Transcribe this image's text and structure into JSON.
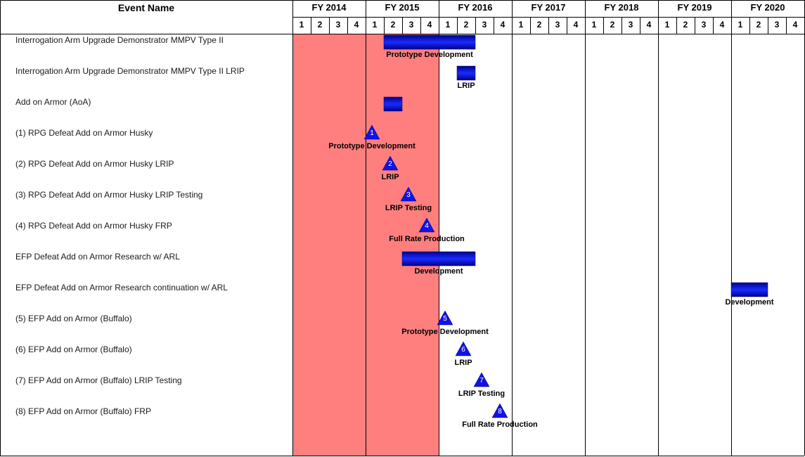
{
  "header": {
    "event_name": "Event Name"
  },
  "chart_data": {
    "type": "gantt",
    "fiscal_years": [
      "FY 2014",
      "FY 2015",
      "FY 2016",
      "FY 2017",
      "FY 2018",
      "FY 2019",
      "FY 2020"
    ],
    "quarter_labels": [
      "1",
      "2",
      "3",
      "4"
    ],
    "highlight": {
      "start": [
        2014,
        1
      ],
      "end": [
        2015,
        4
      ],
      "color": "#ff7f7f"
    },
    "colors": {
      "bar_dark": "#00008b",
      "bar_light": "#1a2bff",
      "marker": "#1212e6",
      "grid": "#000000"
    },
    "rows": [
      {
        "label": "Interrogation Arm Upgrade Demonstrator MMPV  Type II",
        "items": [
          {
            "kind": "bar",
            "start": [
              2015,
              2
            ],
            "end": [
              2016,
              2
            ],
            "text": "Prototype Development"
          }
        ]
      },
      {
        "label": "Interrogation Arm Upgrade Demonstrator MMPV Type II  LRIP",
        "items": [
          {
            "kind": "bar",
            "start": [
              2016,
              2
            ],
            "end": [
              2016,
              2
            ],
            "text": "LRIP"
          }
        ]
      },
      {
        "label": "Add on Armor (AoA)",
        "items": [
          {
            "kind": "bar",
            "start": [
              2015,
              2
            ],
            "end": [
              2015,
              2
            ],
            "text": ""
          }
        ]
      },
      {
        "label": "(1) RPG Defeat Add on Armor  Husky",
        "items": [
          {
            "kind": "milestone",
            "at": [
              2015,
              1
            ],
            "number": "1",
            "text": "Prototype Development"
          }
        ]
      },
      {
        "label": "(2) RPG Defeat Add on Armor  Husky  LRIP",
        "items": [
          {
            "kind": "milestone",
            "at": [
              2015,
              2
            ],
            "number": "2",
            "text": "LRIP"
          }
        ]
      },
      {
        "label": "(3) RPG Defeat Add on Armor Husky LRIP Testing",
        "items": [
          {
            "kind": "milestone",
            "at": [
              2015,
              3
            ],
            "number": "3",
            "text": "LRIP Testing"
          }
        ]
      },
      {
        "label": "(4) RPG Defeat Add on Armor Husky FRP",
        "items": [
          {
            "kind": "milestone",
            "at": [
              2015,
              4
            ],
            "number": "4",
            "text": "Full Rate Production"
          }
        ]
      },
      {
        "label": "EFP Defeat  Add on Armor Research  w/ ARL",
        "items": [
          {
            "kind": "bar",
            "start": [
              2015,
              3
            ],
            "end": [
              2016,
              2
            ],
            "text": "Development"
          }
        ]
      },
      {
        "label": "EFP Defeat  Add on Armor Research continuation  w/ ARL",
        "items": [
          {
            "kind": "bar",
            "start": [
              2020,
              1
            ],
            "end": [
              2020,
              2
            ],
            "text": "Development"
          }
        ]
      },
      {
        "label": "(5) EFP  Add on Armor (Buffalo)",
        "items": [
          {
            "kind": "milestone",
            "at": [
              2016,
              1
            ],
            "number": "5",
            "text": "Prototype Development"
          }
        ]
      },
      {
        "label": "(6) EFP Add on Armor (Buffalo)",
        "items": [
          {
            "kind": "milestone",
            "at": [
              2016,
              2
            ],
            "number": "6",
            "text": "LRIP"
          }
        ]
      },
      {
        "label": "(7) EFP Add on Armor (Buffalo)  LRIP Testing",
        "items": [
          {
            "kind": "milestone",
            "at": [
              2016,
              3
            ],
            "number": "7",
            "text": "LRIP Testing"
          }
        ]
      },
      {
        "label": "(8) EFP Add on Armor (Buffalo)  FRP",
        "items": [
          {
            "kind": "milestone",
            "at": [
              2016,
              4
            ],
            "number": "8",
            "text": "Full Rate Production"
          }
        ]
      }
    ]
  }
}
